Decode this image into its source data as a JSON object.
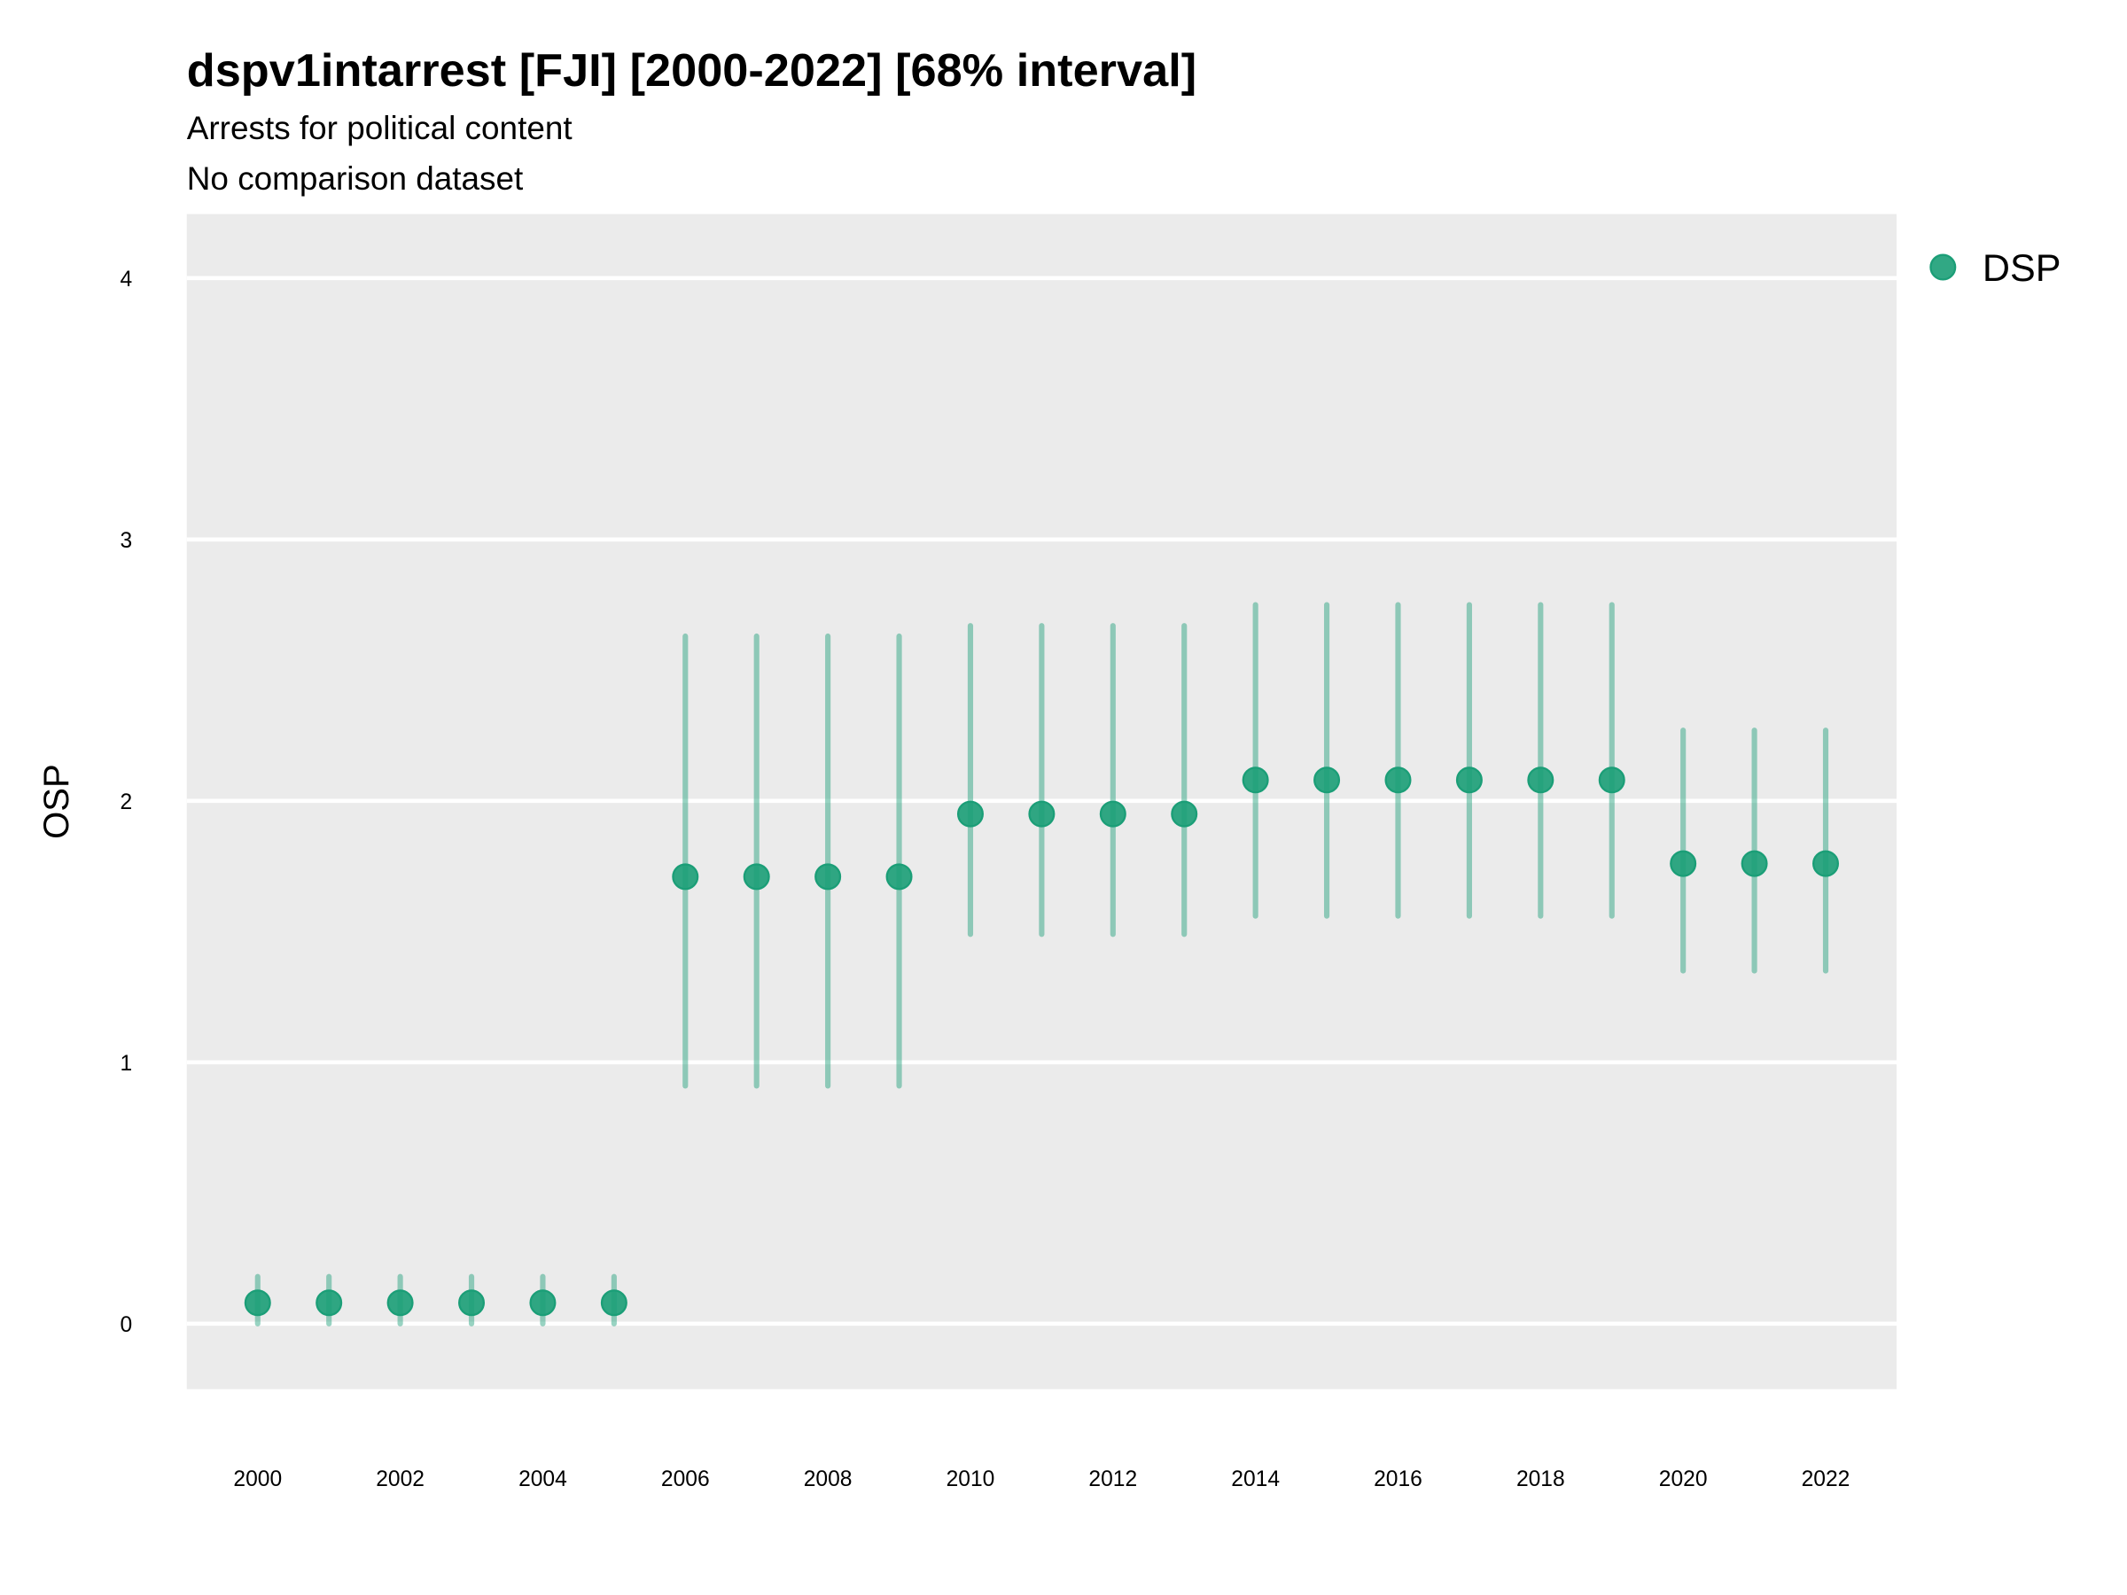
{
  "chart_data": {
    "type": "scatter",
    "title": "dspv1intarrest [FJI] [2000-2022] [68% interval]",
    "subtitle": "Arrests for political content",
    "caption": "No comparison dataset",
    "xlabel": "",
    "ylabel": "OSP",
    "ylim": [
      -0.25,
      4.25
    ],
    "xlim": [
      1999,
      2023
    ],
    "grid": true,
    "legend_position": "right",
    "y_ticks": [
      "0",
      "1",
      "2",
      "3",
      "4"
    ],
    "x_ticks": [
      "2000",
      "2002",
      "2004",
      "2006",
      "2008",
      "2010",
      "2012",
      "2014",
      "2016",
      "2018",
      "2020",
      "2022"
    ],
    "series": [
      {
        "name": "DSP",
        "color": "#1b9e77",
        "x": [
          2000,
          2001,
          2002,
          2003,
          2004,
          2005,
          2006,
          2007,
          2008,
          2009,
          2010,
          2011,
          2012,
          2013,
          2014,
          2015,
          2016,
          2017,
          2018,
          2019,
          2020,
          2021,
          2022
        ],
        "y": [
          0.08,
          0.08,
          0.08,
          0.08,
          0.08,
          0.08,
          1.71,
          1.71,
          1.71,
          1.71,
          1.95,
          1.95,
          1.95,
          1.95,
          2.08,
          2.08,
          2.08,
          2.08,
          2.08,
          2.08,
          1.76,
          1.76,
          1.76
        ],
        "lower": [
          0.0,
          0.0,
          0.0,
          0.0,
          0.0,
          0.0,
          0.91,
          0.91,
          0.91,
          0.91,
          1.49,
          1.49,
          1.49,
          1.49,
          1.56,
          1.56,
          1.56,
          1.56,
          1.56,
          1.56,
          1.35,
          1.35,
          1.35
        ],
        "upper": [
          0.18,
          0.18,
          0.18,
          0.18,
          0.18,
          0.18,
          2.63,
          2.63,
          2.63,
          2.63,
          2.67,
          2.67,
          2.67,
          2.67,
          2.75,
          2.75,
          2.75,
          2.75,
          2.75,
          2.75,
          2.27,
          2.27,
          2.27
        ]
      }
    ]
  }
}
